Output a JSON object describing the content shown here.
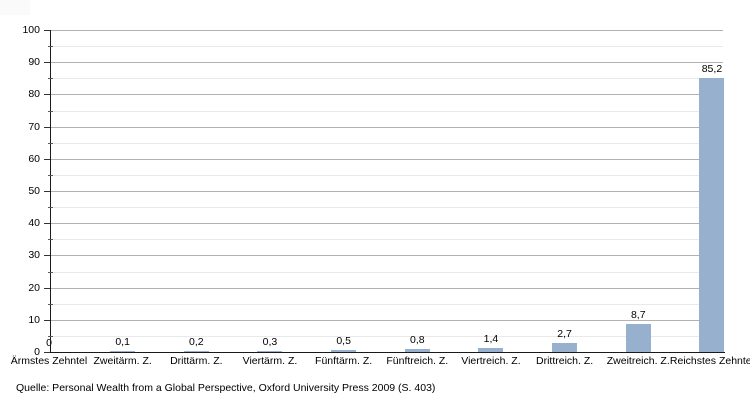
{
  "chart_data": {
    "type": "bar",
    "title": "",
    "categories": [
      "Ärmstes Zehntel",
      "Zweitärm. Z.",
      "Drittärm. Z.",
      "Viertärm. Z.",
      "Fünftärm. Z.",
      "Fünftreich. Z.",
      "Viertreich. Z.",
      "Drittreich. Z.",
      "Zweitreich. Z.",
      "Reichstes Zehntel"
    ],
    "values": [
      0,
      0.1,
      0.2,
      0.3,
      0.5,
      0.8,
      1.4,
      2.7,
      8.7,
      85.2
    ],
    "value_labels": [
      "0",
      "0,1",
      "0,2",
      "0,3",
      "0,5",
      "0,8",
      "1,4",
      "2,7",
      "8,7",
      "85,2"
    ],
    "xlabel": "",
    "ylabel": "",
    "ylim": [
      0,
      100
    ],
    "y_major_step": 10,
    "y_minor_step": 5,
    "y_tick_labels": [
      "0",
      "10",
      "20",
      "30",
      "40",
      "50",
      "60",
      "70",
      "80",
      "90",
      "100"
    ],
    "grid": true,
    "legend_position": "none",
    "bar_color": "#97B0CE",
    "gridline_major_color": "#b1b1b1",
    "gridline_minor_color": "#e9e9e9",
    "axis_color": "#1a1a1a"
  },
  "source_note": "Quelle: Personal Wealth from a Global Perspective, Oxford University Press 2009 (S. 403)"
}
